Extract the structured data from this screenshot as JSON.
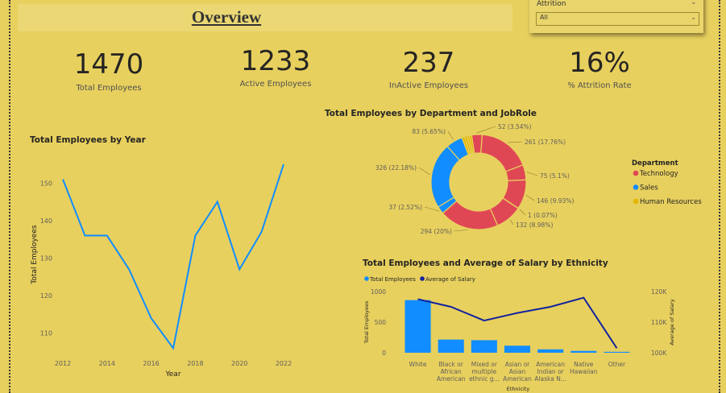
{
  "header": {
    "title": "Overview"
  },
  "slicer": {
    "label": "Attrition",
    "value": "All"
  },
  "kpis": [
    {
      "value": "1470",
      "label": "Total Employees"
    },
    {
      "value": "1233",
      "label": "Active Employees"
    },
    {
      "value": "237",
      "label": "InActive Employees"
    },
    {
      "value": "16%",
      "label": "% Attrition Rate"
    }
  ],
  "colors": {
    "background": "#e8d05e",
    "blue": "#118dff",
    "red": "#e04755",
    "gold": "#e3b505",
    "navy": "#12239e"
  },
  "chart_data": [
    {
      "type": "line",
      "title": "Total Employees by Year",
      "xlabel": "Year",
      "ylabel": "Total Employees",
      "x": [
        2012,
        2013,
        2014,
        2015,
        2016,
        2017,
        2018,
        2019,
        2020,
        2021,
        2022
      ],
      "xticks": [
        "2012",
        "2014",
        "2016",
        "2018",
        "2020",
        "2022"
      ],
      "yticks": [
        "150",
        "140",
        "130",
        "120",
        "110"
      ],
      "values": [
        151,
        136,
        136,
        127,
        114,
        106,
        136,
        145,
        127,
        137,
        155
      ],
      "ylim": [
        105,
        158
      ],
      "grid": false
    },
    {
      "type": "pie",
      "title": "Total Employees by Department and JobRole",
      "legend_title": "Department",
      "legend": [
        {
          "name": "Technology",
          "color": "#e04755"
        },
        {
          "name": "Sales",
          "color": "#118dff"
        },
        {
          "name": "Human Resources",
          "color": "#e3b505"
        }
      ],
      "slices": [
        {
          "value": 52,
          "label": "52 (3.54%)",
          "dept": "Technology"
        },
        {
          "value": 261,
          "label": "261 (17.76%)",
          "dept": "Technology"
        },
        {
          "value": 75,
          "label": "75 (5.1%)",
          "dept": "Technology"
        },
        {
          "value": 146,
          "label": "146 (9.93%)",
          "dept": "Technology"
        },
        {
          "value": 1,
          "label": "1 (0.07%)",
          "dept": "Technology"
        },
        {
          "value": 132,
          "label": "132 (8.98%)",
          "dept": "Technology"
        },
        {
          "value": 294,
          "label": "294 (20%)",
          "dept": "Technology"
        },
        {
          "value": 37,
          "label": "37 (2.52%)",
          "dept": "Sales"
        },
        {
          "value": 326,
          "label": "326 (22.18%)",
          "dept": "Sales"
        },
        {
          "value": 83,
          "label": "83 (5.65%)",
          "dept": "Sales"
        },
        {
          "value": 13,
          "label": "",
          "dept": "Human Resources"
        },
        {
          "value": 13,
          "label": "",
          "dept": "Human Resources"
        },
        {
          "value": 11,
          "label": "",
          "dept": "Human Resources"
        },
        {
          "value": 12,
          "label": "",
          "dept": "Human Resources"
        }
      ]
    },
    {
      "type": "bar",
      "title": "Total Employees and Average of Salary by Ethnicity",
      "xlabel": "Ethnicity",
      "ylabel": "Total Employees",
      "y2label": "Average of Salary",
      "series": [
        {
          "name": "Total Employees",
          "color": "#118dff",
          "values": [
            860,
            215,
            205,
            115,
            55,
            30,
            15
          ]
        },
        {
          "name": "Average of Salary",
          "color": "#12239e",
          "values": [
            117500,
            115000,
            110500,
            113000,
            115000,
            118000,
            101500
          ]
        }
      ],
      "categories": [
        [
          "White"
        ],
        [
          "Black or",
          "African",
          "American"
        ],
        [
          "Mixed or",
          "multiple",
          "ethnic g..."
        ],
        [
          "Asian or",
          "Asian",
          "American"
        ],
        [
          "American",
          "Indian or",
          "Alaska N..."
        ],
        [
          "Native",
          "Hawaiian"
        ],
        [
          "Other"
        ]
      ],
      "yticks": [
        "1000",
        "500",
        "0"
      ],
      "y2ticks": [
        "120K",
        "110K",
        "100K"
      ],
      "ylim": [
        0,
        1000
      ],
      "y2lim": [
        100000,
        120000
      ]
    }
  ]
}
